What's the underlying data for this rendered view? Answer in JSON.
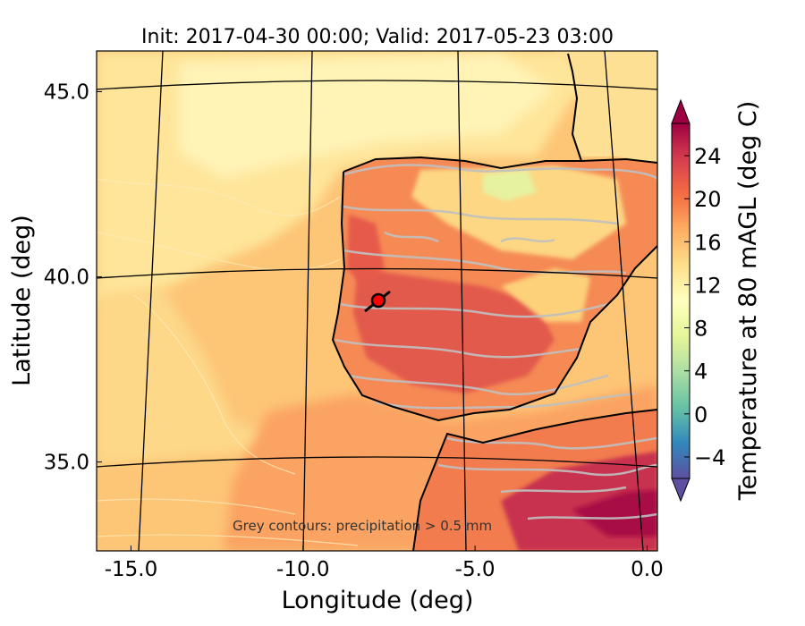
{
  "title": "Init: 2017-04-30 00:00; Valid: 2017-05-23 03:00",
  "x_axis": {
    "label": "Longitude (deg)",
    "ticks": [
      {
        "value": -15,
        "label": "-15.0"
      },
      {
        "value": -10,
        "label": "-10.0"
      },
      {
        "value": -5,
        "label": "-5.0"
      },
      {
        "value": 0,
        "label": "0.0"
      }
    ],
    "range": [
      -16.0,
      0.3
    ]
  },
  "y_axis": {
    "label": "Latitude (deg)",
    "ticks": [
      {
        "value": 35,
        "label": "35.0"
      },
      {
        "value": 40,
        "label": "40.0"
      },
      {
        "value": 45,
        "label": "45.0"
      }
    ],
    "range": [
      32.6,
      46.1
    ]
  },
  "annotation": "Grey contours: precipitation > 0.5 mm",
  "marker": {
    "lon": -7.6,
    "lat": 39.4,
    "color": "#ff0000"
  },
  "colorbar": {
    "label": "Temperature at 80 mAGL (deg C)",
    "min": -6,
    "max": 27,
    "ticks": [
      {
        "value": -4,
        "label": "−4"
      },
      {
        "value": 0,
        "label": "0"
      },
      {
        "value": 4,
        "label": "4"
      },
      {
        "value": 8,
        "label": "8"
      },
      {
        "value": 12,
        "label": "12"
      },
      {
        "value": 16,
        "label": "16"
      },
      {
        "value": 20,
        "label": "20"
      },
      {
        "value": 24,
        "label": "24"
      }
    ],
    "colormap": "Spectral_r",
    "colors": [
      "#5e4fa2",
      "#3288bd",
      "#66c2a5",
      "#abdda4",
      "#e6f598",
      "#ffffbf",
      "#fee08b",
      "#fdae61",
      "#f46d43",
      "#d53e4f",
      "#9e0142"
    ],
    "extend": "both"
  },
  "map_colors": {
    "ocean_base": "#fdc576",
    "ocean_cool": "#fee59a",
    "land_warm": "#f58a55",
    "land_hot": "#d8434f",
    "precip_contour": "#c0c0c0",
    "coastline": "#000000"
  }
}
